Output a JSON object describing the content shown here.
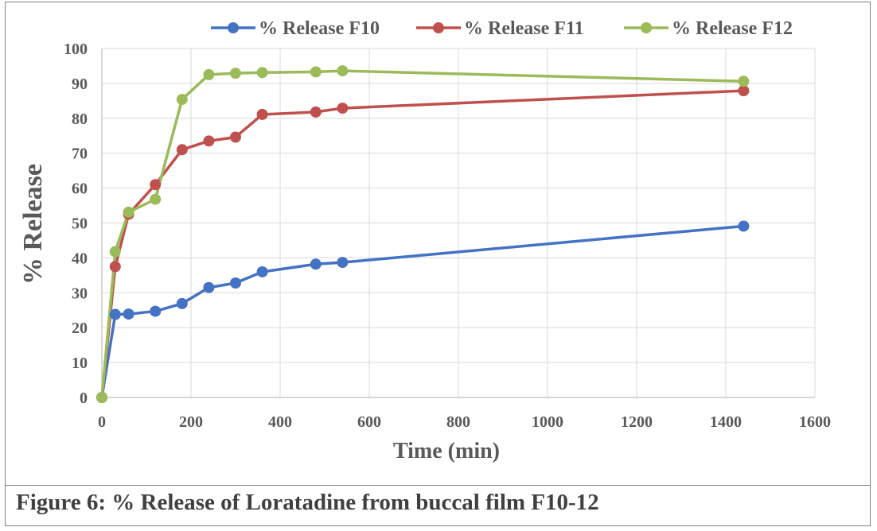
{
  "caption": "Figure 6: % Release of Loratadine from buccal film F10-12",
  "chart_data": {
    "type": "line",
    "title": "",
    "xlabel": "Time (min)",
    "ylabel": "% Release",
    "xlim": [
      0,
      1600
    ],
    "ylim": [
      0,
      100
    ],
    "xticks": [
      0,
      200,
      400,
      600,
      800,
      1000,
      1200,
      1400,
      1600
    ],
    "yticks": [
      0,
      10,
      20,
      30,
      40,
      50,
      60,
      70,
      80,
      90,
      100
    ],
    "grid": true,
    "legend_position": "top",
    "x": [
      0,
      30,
      60,
      120,
      180,
      240,
      300,
      360,
      480,
      540,
      1440
    ],
    "series": [
      {
        "name": "% Release F10",
        "color": "#4472c4",
        "values": [
          0,
          23.8,
          23.9,
          24.7,
          26.9,
          31.5,
          32.8,
          36.0,
          38.2,
          38.7,
          49.1
        ]
      },
      {
        "name": "% Release F11",
        "color": "#c0504d",
        "values": [
          0,
          37.5,
          52.5,
          61.0,
          71.0,
          73.5,
          74.6,
          81.1,
          81.8,
          82.9,
          87.9
        ]
      },
      {
        "name": "% Release F12",
        "color": "#9bbb59",
        "values": [
          0,
          41.8,
          53.1,
          56.8,
          85.4,
          92.5,
          92.9,
          93.1,
          93.3,
          93.6,
          90.6
        ]
      }
    ]
  }
}
